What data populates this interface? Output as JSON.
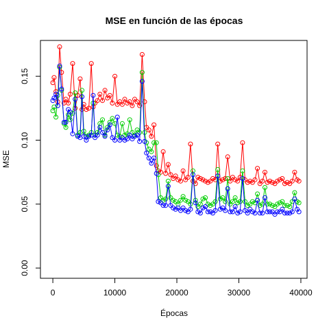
{
  "chart_data": {
    "type": "line",
    "title": "MSE en función de las épocas",
    "xlabel": "Épocas",
    "ylabel": "MSE",
    "xlim": [
      -2000,
      41000
    ],
    "ylim": [
      -0.008,
      0.178
    ],
    "x_ticks": [
      0,
      10000,
      20000,
      30000,
      40000
    ],
    "x_tick_labels": [
      "0",
      "10000",
      "20000",
      "30000",
      "40000"
    ],
    "y_ticks": [
      0.0,
      0.05,
      0.1,
      0.15
    ],
    "y_tick_labels": [
      "0.00",
      "0.05",
      "0.10",
      "0.15"
    ],
    "grid": false,
    "legend": "none",
    "series": [
      {
        "color": "#ff0000",
        "x": [
          0,
          200,
          500,
          800,
          1100,
          1400,
          1800,
          2100,
          2500,
          2800,
          3200,
          3600,
          4000,
          4400,
          4700,
          5000,
          5400,
          5800,
          6200,
          6500,
          6800,
          7200,
          7600,
          8000,
          8400,
          8800,
          9200,
          9600,
          10000,
          10400,
          10800,
          11200,
          11600,
          12000,
          12400,
          12800,
          13200,
          13600,
          14000,
          14400,
          14800,
          15100,
          15500,
          15900,
          16300,
          16700,
          17000,
          17400,
          17800,
          18200,
          18600,
          19000,
          19400,
          19800,
          20200,
          20600,
          21000,
          21400,
          21800,
          22200,
          22600,
          23000,
          23400,
          23800,
          24200,
          24600,
          25000,
          25400,
          25800,
          26200,
          26600,
          27000,
          27400,
          27800,
          28200,
          28600,
          29000,
          29400,
          29800,
          30200,
          30600,
          31000,
          31400,
          31800,
          32200,
          32600,
          33000,
          33400,
          33800,
          34200,
          34600,
          35000,
          35400,
          35800,
          36200,
          36600,
          37000,
          37400,
          37800,
          38200,
          38600,
          39000,
          39400,
          39700
        ],
        "y": [
          0.145,
          0.149,
          0.138,
          0.13,
          0.173,
          0.153,
          0.129,
          0.132,
          0.129,
          0.136,
          0.16,
          0.125,
          0.135,
          0.148,
          0.124,
          0.128,
          0.124,
          0.125,
          0.16,
          0.126,
          0.129,
          0.131,
          0.136,
          0.131,
          0.139,
          0.133,
          0.135,
          0.129,
          0.15,
          0.128,
          0.13,
          0.128,
          0.132,
          0.129,
          0.13,
          0.127,
          0.132,
          0.13,
          0.127,
          0.167,
          0.13,
          0.11,
          0.108,
          0.103,
          0.112,
          0.08,
          0.076,
          0.075,
          0.091,
          0.074,
          0.081,
          0.073,
          0.07,
          0.072,
          0.069,
          0.068,
          0.076,
          0.069,
          0.071,
          0.097,
          0.068,
          0.066,
          0.071,
          0.07,
          0.069,
          0.068,
          0.067,
          0.068,
          0.07,
          0.069,
          0.097,
          0.068,
          0.069,
          0.07,
          0.087,
          0.068,
          0.071,
          0.069,
          0.068,
          0.071,
          0.098,
          0.069,
          0.067,
          0.068,
          0.067,
          0.069,
          0.078,
          0.066,
          0.068,
          0.075,
          0.067,
          0.068,
          0.067,
          0.066,
          0.068,
          0.069,
          0.07,
          0.066,
          0.067,
          0.066,
          0.068,
          0.075,
          0.069,
          0.068
        ]
      },
      {
        "color": "#00cd00",
        "x": [
          0,
          200,
          500,
          800,
          1100,
          1400,
          1800,
          2100,
          2500,
          2800,
          3200,
          3600,
          4000,
          4400,
          4700,
          5000,
          5400,
          5800,
          6200,
          6500,
          6800,
          7200,
          7600,
          8000,
          8400,
          8800,
          9200,
          9600,
          10000,
          10400,
          10800,
          11200,
          11600,
          12000,
          12400,
          12800,
          13200,
          13600,
          14000,
          14400,
          14800,
          15100,
          15500,
          15900,
          16300,
          16700,
          17000,
          17400,
          17800,
          18200,
          18600,
          19000,
          19400,
          19800,
          20200,
          20600,
          21000,
          21400,
          21800,
          22200,
          22600,
          23000,
          23400,
          23800,
          24200,
          24600,
          25000,
          25400,
          25800,
          26200,
          26600,
          27000,
          27400,
          27800,
          28200,
          28600,
          29000,
          29400,
          29800,
          30200,
          30600,
          31000,
          31400,
          31800,
          32200,
          32600,
          33000,
          33400,
          33800,
          34200,
          34600,
          35000,
          35400,
          35800,
          36200,
          36600,
          37000,
          37400,
          37800,
          38200,
          38600,
          39000,
          39400,
          39700
        ],
        "y": [
          0.123,
          0.126,
          0.118,
          0.135,
          0.157,
          0.139,
          0.113,
          0.11,
          0.12,
          0.116,
          0.121,
          0.137,
          0.104,
          0.106,
          0.139,
          0.107,
          0.103,
          0.104,
          0.106,
          0.129,
          0.104,
          0.106,
          0.113,
          0.116,
          0.104,
          0.11,
          0.114,
          0.117,
          0.113,
          0.104,
          0.103,
          0.113,
          0.104,
          0.105,
          0.116,
          0.106,
          0.104,
          0.108,
          0.106,
          0.153,
          0.106,
          0.098,
          0.093,
          0.091,
          0.098,
          0.098,
          0.073,
          0.055,
          0.053,
          0.054,
          0.068,
          0.055,
          0.053,
          0.052,
          0.05,
          0.053,
          0.056,
          0.053,
          0.052,
          0.05,
          0.076,
          0.053,
          0.048,
          0.05,
          0.054,
          0.055,
          0.05,
          0.049,
          0.05,
          0.052,
          0.077,
          0.054,
          0.055,
          0.052,
          0.07,
          0.05,
          0.052,
          0.055,
          0.051,
          0.052,
          0.076,
          0.052,
          0.049,
          0.05,
          0.052,
          0.051,
          0.058,
          0.049,
          0.05,
          0.063,
          0.05,
          0.05,
          0.049,
          0.048,
          0.05,
          0.051,
          0.052,
          0.049,
          0.049,
          0.048,
          0.052,
          0.059,
          0.052,
          0.051
        ]
      },
      {
        "color": "#0000ff",
        "x": [
          0,
          200,
          500,
          800,
          1100,
          1400,
          1800,
          2100,
          2500,
          2800,
          3200,
          3600,
          4000,
          4400,
          4700,
          5000,
          5400,
          5800,
          6200,
          6500,
          6800,
          7200,
          7600,
          8000,
          8400,
          8800,
          9200,
          9600,
          10000,
          10400,
          10800,
          11200,
          11600,
          12000,
          12400,
          12800,
          13200,
          13600,
          14000,
          14400,
          14800,
          15100,
          15500,
          15900,
          16300,
          16700,
          17000,
          17400,
          17800,
          18200,
          18600,
          19000,
          19400,
          19800,
          20200,
          20600,
          21000,
          21400,
          21800,
          22200,
          22600,
          23000,
          23400,
          23800,
          24200,
          24600,
          25000,
          25400,
          25800,
          26200,
          26600,
          27000,
          27400,
          27800,
          28200,
          28600,
          29000,
          29400,
          29800,
          30200,
          30600,
          31000,
          31400,
          31800,
          32200,
          32600,
          33000,
          33400,
          33800,
          34200,
          34600,
          35000,
          35400,
          35800,
          36200,
          36600,
          37000,
          37400,
          37800,
          38200,
          38600,
          39000,
          39400,
          39700
        ],
        "y": [
          0.131,
          0.133,
          0.136,
          0.127,
          0.158,
          0.14,
          0.114,
          0.114,
          0.124,
          0.122,
          0.105,
          0.132,
          0.103,
          0.102,
          0.134,
          0.103,
          0.1,
          0.103,
          0.104,
          0.135,
          0.102,
          0.104,
          0.11,
          0.106,
          0.103,
          0.108,
          0.112,
          0.102,
          0.1,
          0.118,
          0.1,
          0.102,
          0.1,
          0.101,
          0.104,
          0.101,
          0.103,
          0.104,
          0.099,
          0.146,
          0.099,
          0.09,
          0.086,
          0.082,
          0.086,
          0.074,
          0.052,
          0.051,
          0.049,
          0.049,
          0.064,
          0.049,
          0.047,
          0.046,
          0.047,
          0.045,
          0.047,
          0.045,
          0.044,
          0.046,
          0.073,
          0.051,
          0.044,
          0.043,
          0.047,
          0.048,
          0.044,
          0.044,
          0.043,
          0.045,
          0.072,
          0.046,
          0.047,
          0.045,
          0.062,
          0.044,
          0.044,
          0.048,
          0.043,
          0.044,
          0.07,
          0.045,
          0.043,
          0.046,
          0.044,
          0.043,
          0.053,
          0.043,
          0.043,
          0.055,
          0.044,
          0.044,
          0.044,
          0.042,
          0.044,
          0.044,
          0.046,
          0.043,
          0.043,
          0.043,
          0.044,
          0.054,
          0.046,
          0.044
        ]
      }
    ]
  }
}
